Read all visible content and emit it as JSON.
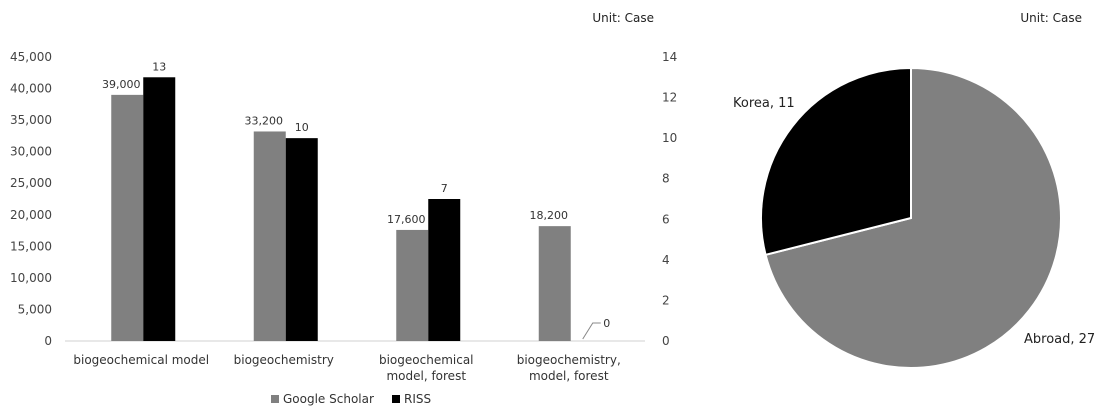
{
  "chart_data": [
    {
      "type": "bar",
      "unit_label": "Unit: Case",
      "categories": [
        [
          "biogeochemical model"
        ],
        [
          "biogeochemistry"
        ],
        [
          "biogeochemical",
          "model, forest"
        ],
        [
          "biogeochemistry,",
          "model, forest"
        ]
      ],
      "series": [
        {
          "name": "Google Scholar",
          "axis": "left",
          "color": "#808080",
          "values": [
            39000,
            33200,
            17600,
            18200
          ],
          "labels": [
            "39,000",
            "33,200",
            "17,600",
            "18,200"
          ]
        },
        {
          "name": "RISS",
          "axis": "right",
          "color": "#000000",
          "values": [
            13,
            10,
            7,
            0
          ],
          "labels": [
            "13",
            "10",
            "7",
            "0"
          ]
        }
      ],
      "y_left": {
        "min": 0,
        "max": 45000,
        "step": 5000,
        "ticks": [
          "0",
          "5,000",
          "10,000",
          "15,000",
          "20,000",
          "25,000",
          "30,000",
          "35,000",
          "40,000",
          "45,000"
        ]
      },
      "y_right": {
        "min": 0,
        "max": 14,
        "step": 2,
        "ticks": [
          "0",
          "2",
          "4",
          "6",
          "8",
          "10",
          "12",
          "14"
        ]
      },
      "grid": false,
      "legend_position": "bottom"
    },
    {
      "type": "pie",
      "unit_label": "Unit: Case",
      "slices": [
        {
          "name": "Korea",
          "value": 11,
          "label": "Korea, 11",
          "color": "#000000"
        },
        {
          "name": "Abroad",
          "value": 27,
          "label": "Abroad, 27",
          "color": "#808080"
        }
      ]
    }
  ]
}
